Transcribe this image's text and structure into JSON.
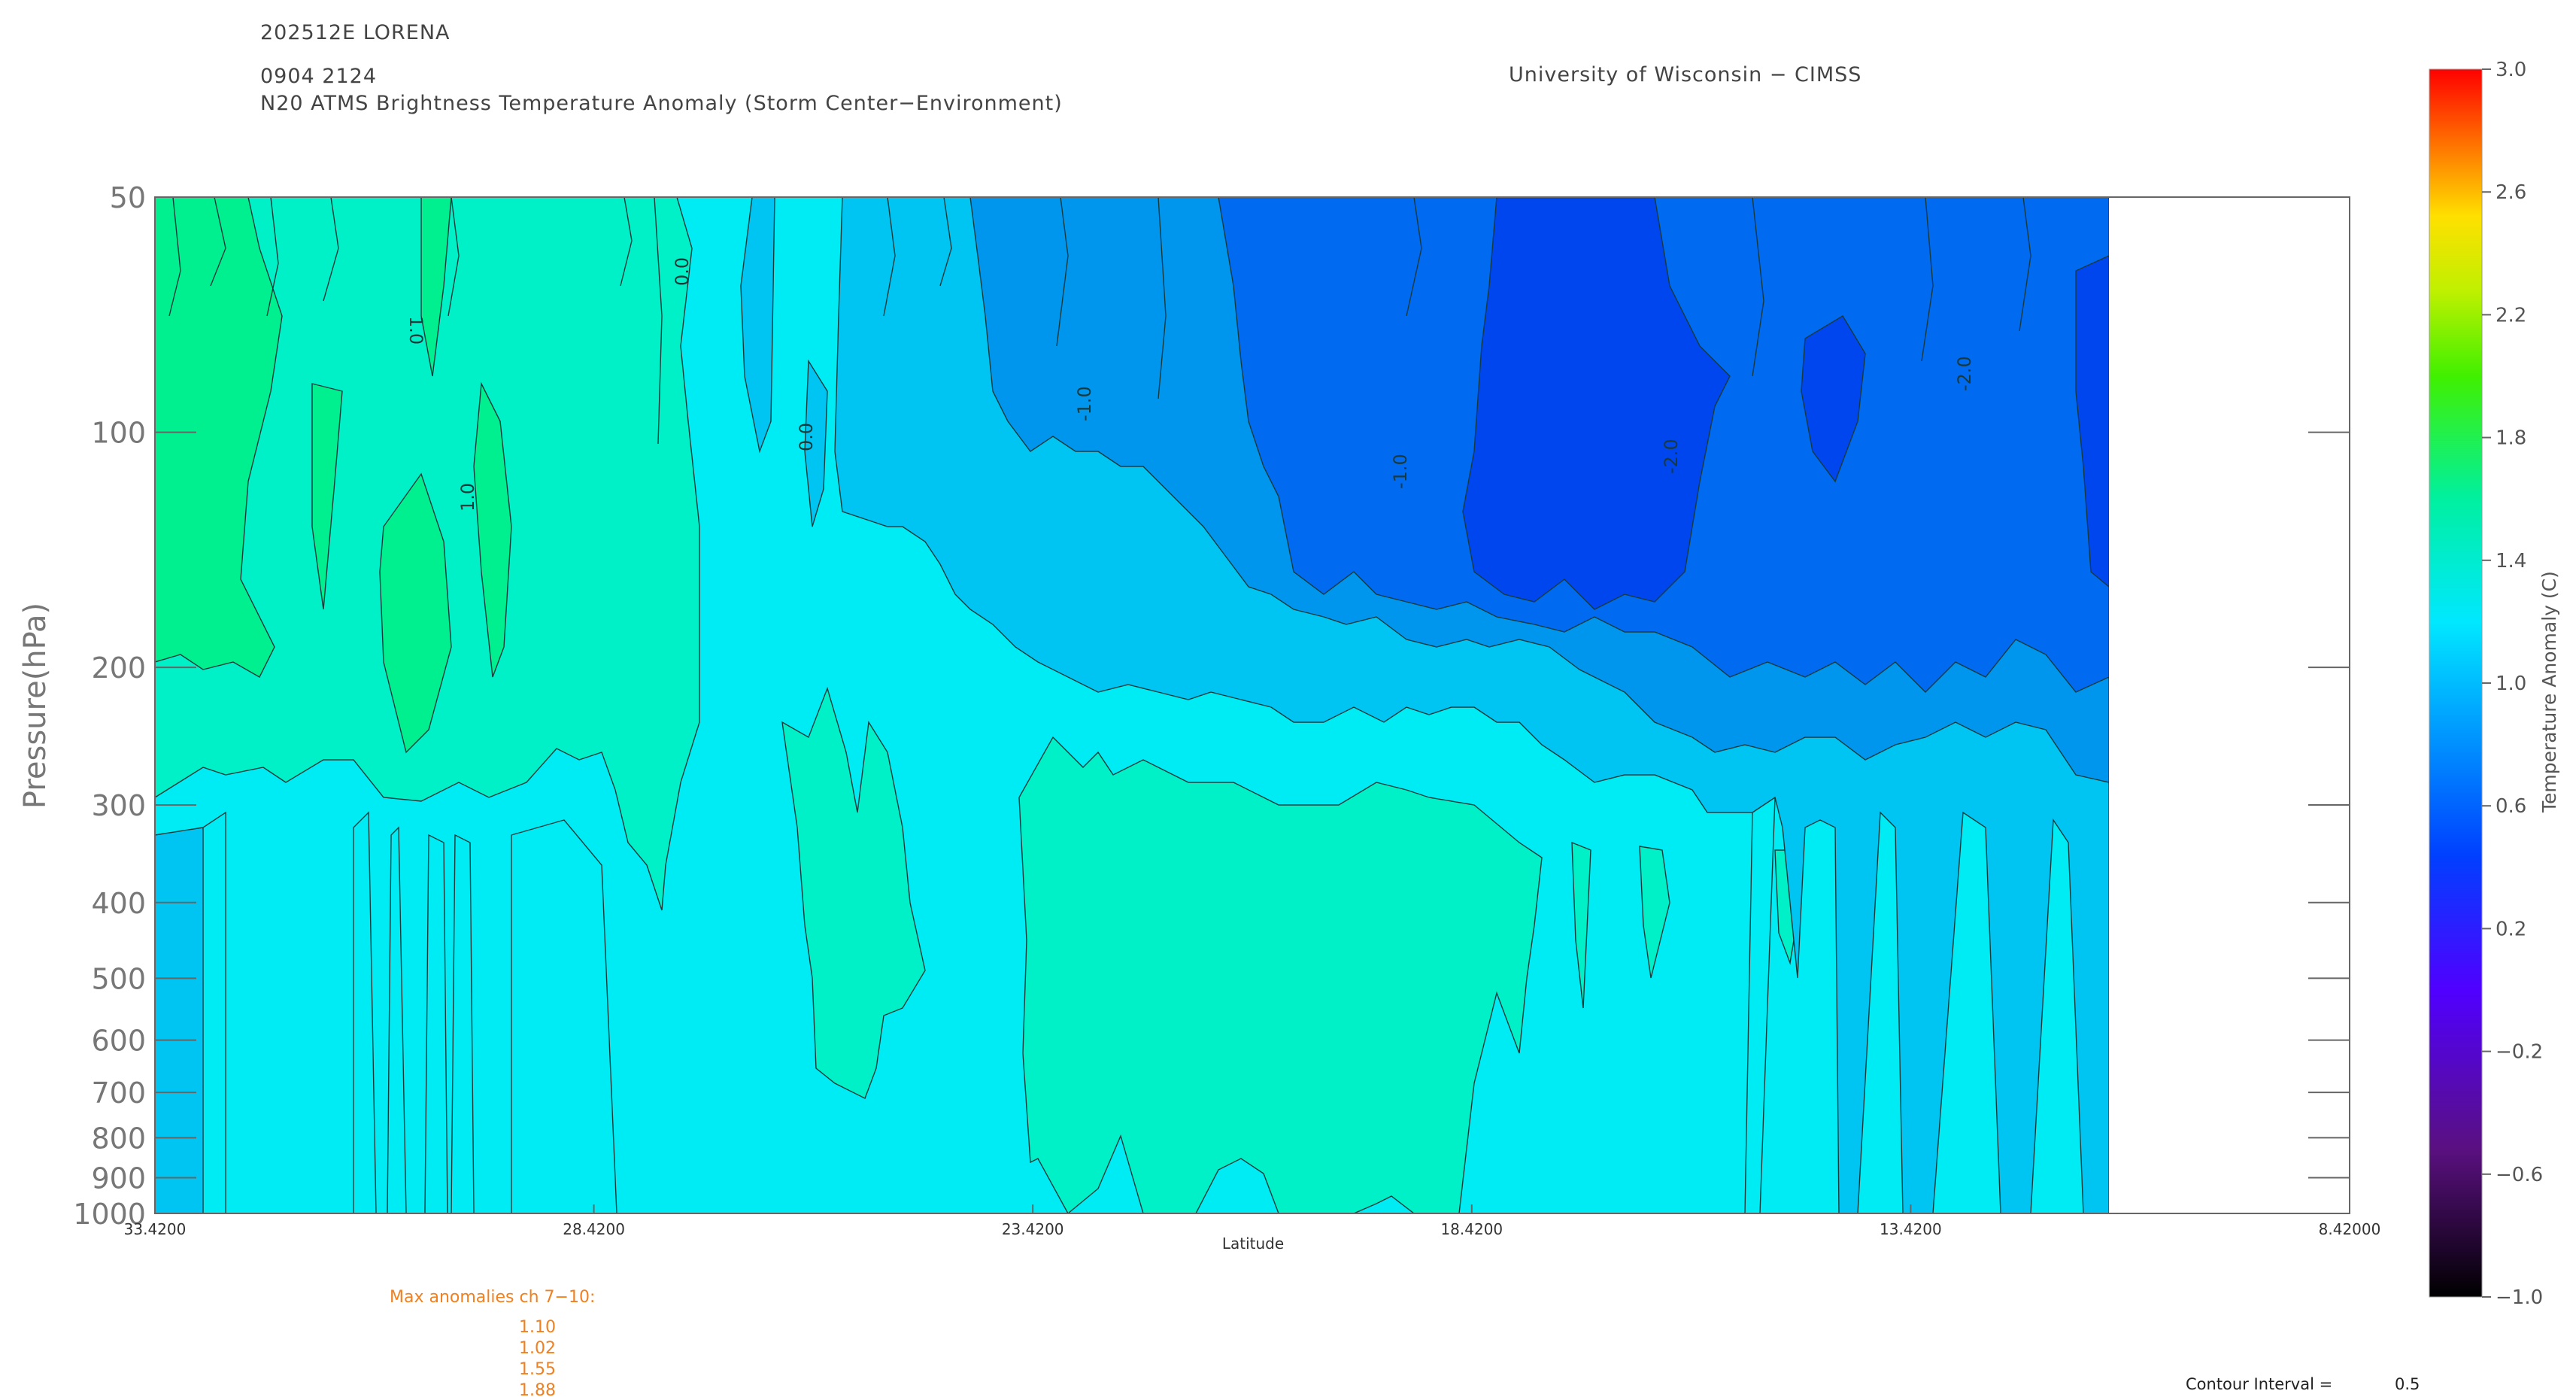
{
  "header": {
    "storm_id": "202512E LORENA",
    "datetime": "0904 2124",
    "product": "N20 ATMS Brightness Temperature Anomaly (Storm Center−Environment)",
    "organization": "University of Wisconsin − CIMSS"
  },
  "chart_data": {
    "type": "heatmap",
    "title": "N20 ATMS Brightness Temperature Anomaly (Storm Center−Environment)",
    "xlabel": "Latitude",
    "ylabel": "Pressure(hPa)",
    "x_ticks": [
      33.42,
      28.42,
      23.42,
      18.42,
      13.42,
      8.42
    ],
    "x_tick_labels": [
      "33.4200",
      "28.4200",
      "23.4200",
      "18.4200",
      "13.4200",
      "8.42000"
    ],
    "xlim": [
      33.42,
      8.42
    ],
    "x_data_range": [
      33.42,
      11.2
    ],
    "y_scale": "log",
    "y_reversed": true,
    "ylim": [
      1000,
      50
    ],
    "y_ticks": [
      50,
      100,
      200,
      300,
      400,
      500,
      600,
      700,
      800,
      900,
      1000
    ],
    "y_tick_labels": [
      "50",
      "100",
      "200",
      "300",
      "400",
      "500",
      "600",
      "700",
      "800",
      "900",
      "1000"
    ],
    "colorbar": {
      "label": "Temperature Anomaly (C)",
      "ticks": [
        3.0,
        2.6,
        2.2,
        1.8,
        1.4,
        1.0,
        0.6,
        0.2,
        -0.2,
        -0.6,
        -1.0
      ],
      "tick_labels": [
        "3.0",
        "2.6",
        "2.2",
        "1.8",
        "1.4",
        "1.0",
        "0.6",
        "0.2",
        "−0.2",
        "−0.6",
        "−1.0"
      ],
      "range": [
        -1.0,
        3.0
      ]
    },
    "contour_interval": 0.5,
    "contour_labels": [
      "0.0",
      "1.0",
      "-1.0",
      "-2.0",
      "0.0",
      "1.0",
      "-1.0",
      "-2.0"
    ],
    "anomaly_levels": [
      {
        "value": 1.0,
        "color": "#00f090"
      },
      {
        "value": 0.5,
        "color": "#00f0c8"
      },
      {
        "value": 0.0,
        "color": "#00ecf4"
      },
      {
        "value": -0.5,
        "color": "#00c4f2"
      },
      {
        "value": -1.0,
        "color": "#0096ee"
      },
      {
        "value": -1.5,
        "color": "#006af0"
      },
      {
        "value": -2.0,
        "color": "#0046ee"
      }
    ],
    "max_anomalies": {
      "title": "Max anomalies ch 7−10:",
      "values": [
        "1.10",
        "1.02",
        "1.55",
        "1.88"
      ]
    }
  },
  "footer": {
    "contour_interval_label": "Contour Interval =",
    "contour_interval_value": "0.5"
  }
}
